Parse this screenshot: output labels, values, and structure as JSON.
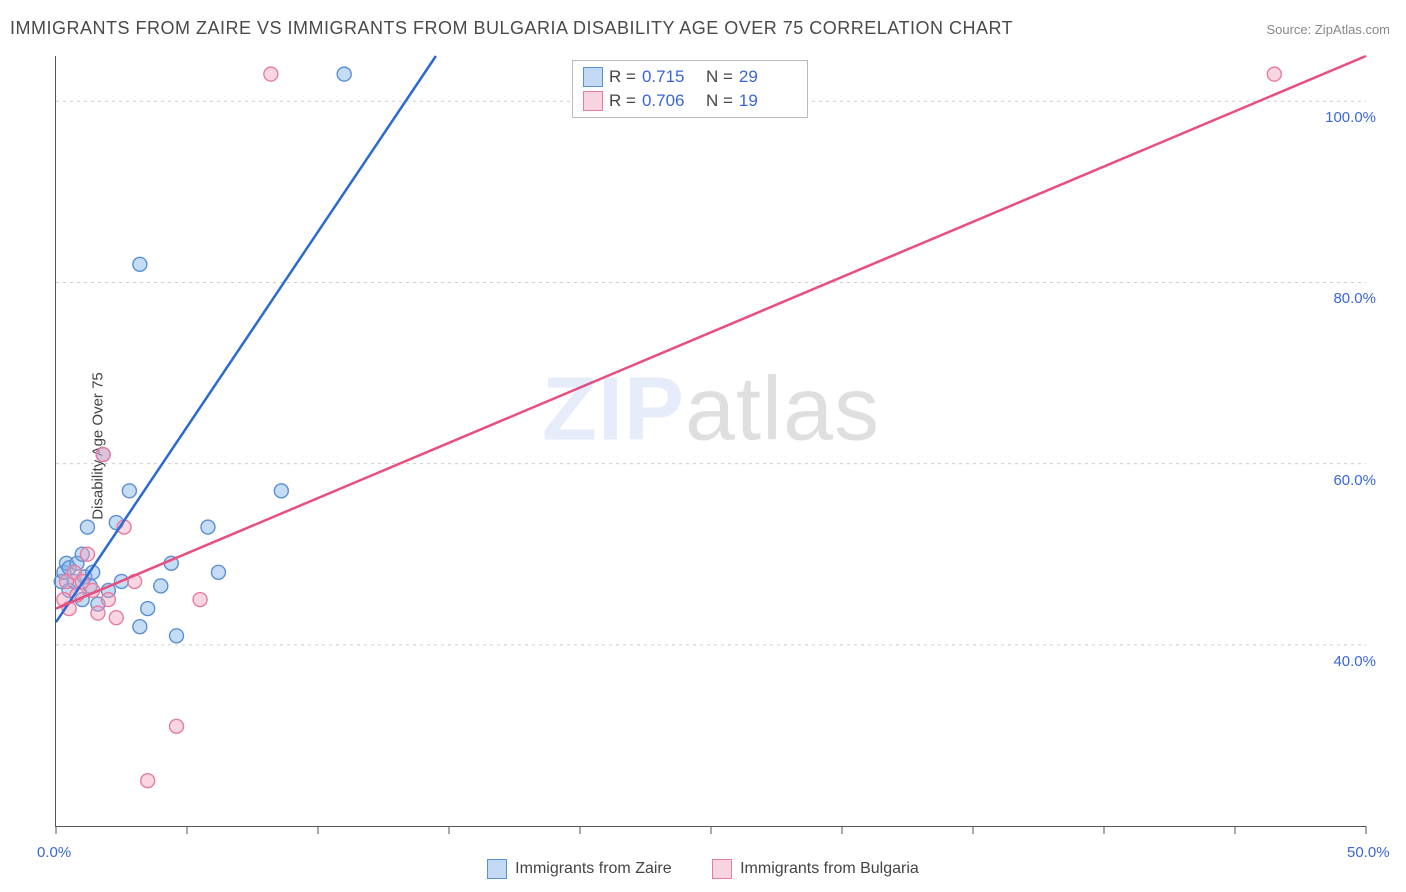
{
  "title": "IMMIGRANTS FROM ZAIRE VS IMMIGRANTS FROM BULGARIA DISABILITY AGE OVER 75 CORRELATION CHART",
  "source": "Source: ZipAtlas.com",
  "ylabel": "Disability Age Over 75",
  "watermark_zip": "ZIP",
  "watermark_rest": "atlas",
  "chart": {
    "type": "scatter",
    "xlim": [
      0,
      50
    ],
    "ylim": [
      20,
      105
    ],
    "x_ticks": [
      0,
      5,
      10,
      15,
      20,
      25,
      30,
      35,
      40,
      45,
      50
    ],
    "x_tick_labels": {
      "0": "0.0%",
      "50": "50.0%"
    },
    "y_grid": [
      40,
      60,
      80,
      100
    ],
    "y_grid_labels": [
      "40.0%",
      "60.0%",
      "80.0%",
      "100.0%"
    ],
    "background_color": "#ffffff",
    "grid_color": "#cccccc",
    "axis_color": "#555555",
    "marker_radius": 7,
    "series": [
      {
        "name": "Immigrants from Zaire",
        "color_fill": "#7fb1e8",
        "color_stroke": "#5b8fd4",
        "r_value": "0.715",
        "n_value": "29",
        "regression": {
          "x1": 0,
          "y1": 42.5,
          "x2": 14.5,
          "y2": 105,
          "color": "#2a6ad1"
        },
        "points": [
          [
            0.2,
            47
          ],
          [
            0.3,
            48
          ],
          [
            0.4,
            49
          ],
          [
            0.5,
            46
          ],
          [
            0.5,
            48.5
          ],
          [
            0.7,
            47
          ],
          [
            0.8,
            49
          ],
          [
            1.0,
            45
          ],
          [
            1.0,
            50
          ],
          [
            1.1,
            47.5
          ],
          [
            1.2,
            53
          ],
          [
            1.3,
            46.5
          ],
          [
            1.4,
            48
          ],
          [
            1.6,
            44.5
          ],
          [
            1.8,
            61
          ],
          [
            2.0,
            46
          ],
          [
            2.3,
            53.5
          ],
          [
            2.5,
            47
          ],
          [
            2.8,
            57
          ],
          [
            3.2,
            42
          ],
          [
            3.2,
            82
          ],
          [
            3.5,
            44
          ],
          [
            4.0,
            46.5
          ],
          [
            4.4,
            49
          ],
          [
            4.6,
            41
          ],
          [
            5.8,
            53
          ],
          [
            6.2,
            48
          ],
          [
            8.6,
            57
          ],
          [
            11.0,
            103
          ]
        ]
      },
      {
        "name": "Immigrants from Bulgaria",
        "color_fill": "#f4a4bd",
        "color_stroke": "#e67ca1",
        "r_value": "0.706",
        "n_value": "19",
        "regression": {
          "x1": 0,
          "y1": 44,
          "x2": 50,
          "y2": 105,
          "color": "#e94f7e"
        },
        "points": [
          [
            0.3,
            45
          ],
          [
            0.4,
            47
          ],
          [
            0.5,
            44
          ],
          [
            0.7,
            48
          ],
          [
            0.8,
            45.5
          ],
          [
            1.0,
            47
          ],
          [
            1.2,
            50
          ],
          [
            1.4,
            46
          ],
          [
            1.6,
            43.5
          ],
          [
            1.8,
            61
          ],
          [
            2.0,
            45
          ],
          [
            2.3,
            43
          ],
          [
            2.6,
            53
          ],
          [
            3.0,
            47
          ],
          [
            3.5,
            25
          ],
          [
            4.6,
            31
          ],
          [
            5.5,
            45
          ],
          [
            8.2,
            103
          ],
          [
            46.5,
            103
          ]
        ]
      }
    ]
  },
  "legend_top": {
    "r_label": "R  =",
    "n_label": "N  ="
  }
}
